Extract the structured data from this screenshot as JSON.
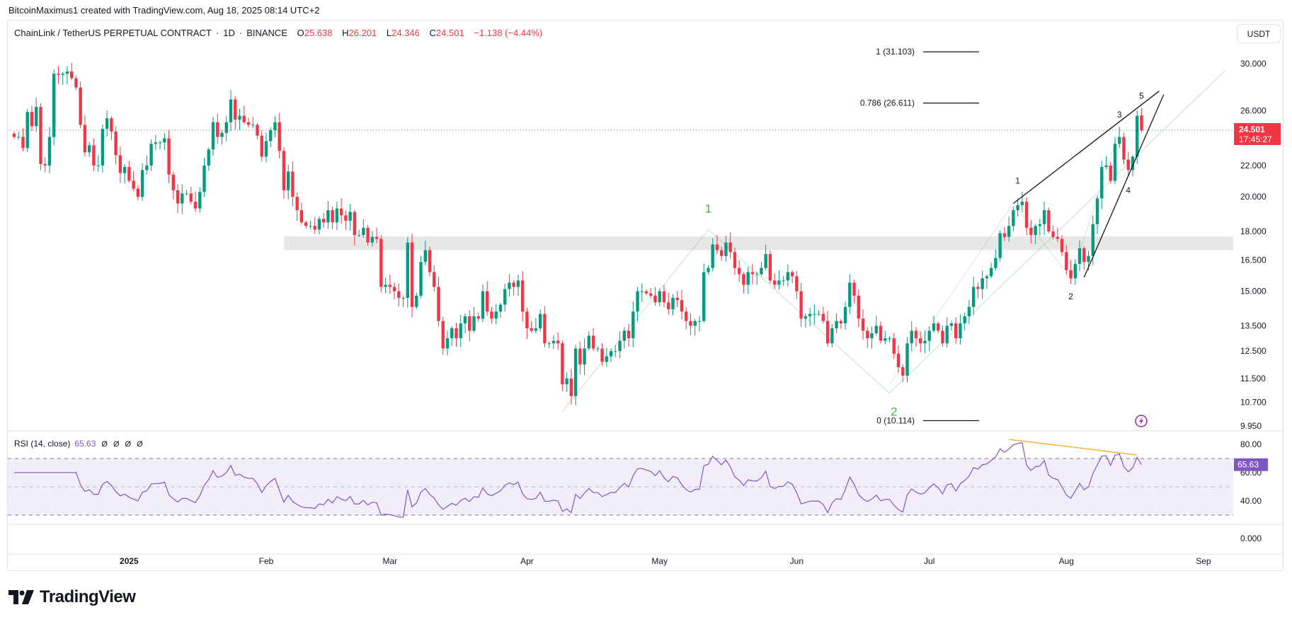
{
  "attribution": "BitcoinMaximus1 created with TradingView.com, Aug 18, 2025 08:14 UTC+2",
  "legend": {
    "symbol": "ChainLink / TetherUS PERPETUAL CONTRACT",
    "interval": "1D",
    "exchange": "BINANCE",
    "separator": "·",
    "o_label": "O",
    "open": "25.638",
    "h_label": "H",
    "high": "26.201",
    "l_label": "L",
    "low": "24.346",
    "c_label": "C",
    "close": "24.501",
    "change": "−1.138 (−4.44%)"
  },
  "currency_button": "USDT",
  "last_price": {
    "value": "24.501",
    "countdown": "17:45:27"
  },
  "rsi": {
    "title": "RSI (14, close)",
    "value": "65.63",
    "na": [
      "Ø",
      "Ø",
      "Ø",
      "Ø"
    ]
  },
  "logo": "TradingView",
  "colors": {
    "up": "#089981",
    "down": "#f23645",
    "rsi_line": "#7e57c2",
    "rsi_band": "#7e57c2",
    "divergence": "#f5a623",
    "elliott": "#4caf50",
    "zone": "#e3e3e3",
    "wedge": "#131722",
    "alert": "#9c27b0"
  },
  "chart_data": [
    {
      "type": "candlestick",
      "scale": "log",
      "start_date": "2024-12-06",
      "interval": "1D",
      "closes": [
        24.0,
        24.0,
        23.2,
        25.9,
        24.8,
        26.3,
        22.1,
        22.0,
        24.0,
        29.1,
        29.0,
        29.1,
        29.3,
        28.7,
        27.9,
        24.9,
        22.9,
        23.4,
        22.0,
        22.0,
        24.6,
        25.4,
        24.4,
        22.7,
        21.5,
        21.9,
        21.0,
        20.5,
        20.0,
        21.7,
        22.0,
        23.5,
        23.6,
        23.6,
        23.9,
        21.4,
        20.4,
        19.6,
        20.2,
        20.2,
        19.7,
        19.3,
        20.3,
        22.0,
        23.1,
        25.1,
        24.0,
        24.3,
        25.1,
        26.9,
        25.3,
        25.6,
        25.1,
        24.9,
        24.9,
        24.1,
        22.6,
        23.7,
        24.5,
        25.1,
        23.0,
        20.4,
        21.6,
        20.0,
        19.2,
        18.5,
        18.3,
        18.3,
        18.1,
        18.7,
        18.5,
        19.2,
        18.5,
        19.3,
        18.9,
        18.6,
        19.1,
        17.8,
        17.8,
        18.2,
        17.4,
        17.7,
        17.6,
        15.2,
        15.3,
        15.2,
        15.0,
        14.7,
        14.7,
        17.4,
        14.3,
        14.8,
        16.4,
        17.0,
        15.9,
        15.2,
        13.7,
        12.6,
        13.0,
        13.4,
        13.0,
        13.6,
        13.9,
        13.3,
        13.9,
        13.8,
        15.0,
        14.1,
        13.8,
        14.1,
        14.4,
        15.1,
        15.4,
        15.2,
        15.5,
        14.1,
        13.4,
        13.3,
        13.4,
        14.0,
        12.8,
        12.8,
        12.9,
        12.8,
        11.3,
        11.5,
        10.9,
        12.6,
        12.0,
        12.6,
        13.1,
        12.6,
        12.6,
        12.1,
        12.3,
        12.5,
        12.5,
        12.9,
        13.3,
        13.0,
        14.1,
        15.0,
        15.0,
        14.9,
        14.8,
        14.5,
        15.0,
        14.5,
        14.2,
        14.7,
        14.6,
        14.1,
        13.7,
        13.5,
        13.7,
        13.7,
        15.9,
        16.1,
        17.3,
        17.0,
        16.7,
        17.4,
        16.9,
        16.1,
        15.8,
        15.3,
        15.9,
        15.8,
        15.8,
        16.1,
        16.8,
        15.5,
        15.3,
        15.5,
        15.5,
        15.9,
        15.7,
        15.0,
        13.8,
        13.9,
        14.0,
        14.0,
        14.0,
        13.7,
        12.8,
        13.4,
        13.7,
        13.6,
        14.3,
        15.4,
        14.8,
        13.8,
        13.3,
        13.0,
        13.2,
        13.5,
        12.9,
        13.0,
        13.0,
        12.4,
        11.9,
        11.6,
        12.8,
        13.3,
        13.0,
        12.8,
        12.9,
        13.3,
        13.6,
        13.3,
        12.8,
        13.5,
        13.6,
        13.0,
        13.6,
        13.9,
        14.3,
        15.2,
        15.1,
        15.6,
        15.7,
        16.1,
        16.6,
        17.9,
        17.7,
        18.3,
        19.2,
        19.5,
        19.7,
        18.2,
        17.8,
        18.3,
        18.4,
        19.2,
        18.0,
        17.7,
        17.6,
        16.9,
        16.0,
        15.6,
        16.3,
        17.1,
        16.4,
        16.7,
        18.4,
        19.9,
        21.9,
        22.0,
        21.0,
        23.5,
        24.0,
        22.4,
        21.7,
        22.6,
        25.6,
        24.501
      ],
      "last_candle": {
        "open": 25.638,
        "high": 26.201,
        "low": 24.346,
        "close": 24.501
      },
      "price_ticks": [
        "30.000",
        "26.000",
        "22.000",
        "20.000",
        "18.000",
        "16.500",
        "15.000",
        "13.500",
        "12.500",
        "11.500",
        "10.700",
        "9.950"
      ],
      "time_ticks": [
        {
          "label": "2025",
          "date": "2025-01-01"
        },
        {
          "label": "Feb",
          "date": "2025-02-01"
        },
        {
          "label": "Mar",
          "date": "2025-03-01"
        },
        {
          "label": "Apr",
          "date": "2025-04-01"
        },
        {
          "label": "May",
          "date": "2025-05-01"
        },
        {
          "label": "Jun",
          "date": "2025-06-01"
        },
        {
          "label": "Jul",
          "date": "2025-07-01"
        },
        {
          "label": "Aug",
          "date": "2025-08-01"
        },
        {
          "label": "Sep",
          "date": "2025-09-01"
        }
      ],
      "fib_levels": [
        {
          "label": "1 (31.103)",
          "price": 31.103
        },
        {
          "label": "0.786 (26.611)",
          "price": 26.611
        },
        {
          "label": "0 (10.114)",
          "price": 10.114
        }
      ],
      "zone": {
        "from_date": "2025-02-05",
        "low": 17.0,
        "high": 17.73
      },
      "elliott_major": {
        "path": [
          [
            "2025-04-09",
            10.4
          ],
          [
            "2025-05-12",
            18.1
          ],
          [
            "2025-06-22",
            11.0
          ],
          [
            "2025-09-06",
            29.4
          ]
        ],
        "labels": [
          {
            "label": "1",
            "date": "2025-05-12",
            "price": 19.3
          },
          {
            "label": "2",
            "date": "2025-06-23",
            "price": 10.4
          }
        ]
      },
      "elliott_minor_path": [
        [
          "2025-06-22",
          11.3
        ],
        [
          "2025-07-20",
          19.6
        ],
        [
          "2025-08-02",
          15.6
        ],
        [
          "2025-08-13",
          24.5
        ]
      ],
      "wedge": {
        "upper": [
          [
            "2025-07-20",
            19.6
          ],
          [
            "2025-08-22",
            27.6
          ]
        ],
        "lower": [
          [
            "2025-08-05",
            15.65
          ],
          [
            "2025-08-23",
            27.3
          ]
        ]
      },
      "wave_labels": [
        {
          "label": "1",
          "date": "2025-07-21",
          "price": 21.0
        },
        {
          "label": "2",
          "date": "2025-08-02",
          "price": 14.76
        },
        {
          "label": "3",
          "date": "2025-08-13",
          "price": 25.7
        },
        {
          "label": "4",
          "date": "2025-08-15",
          "price": 20.4
        },
        {
          "label": "5",
          "date": "2025-08-18",
          "price": 27.2
        }
      ]
    },
    {
      "type": "line",
      "indicator": "RSI",
      "period": 14,
      "source": "close",
      "ylim": [
        0,
        100
      ],
      "levels": [
        70,
        50,
        30
      ],
      "ticks": [
        "80.00",
        "60.00",
        "40.00"
      ],
      "divergence_line": [
        [
          "2025-07-19",
          83.5
        ],
        [
          "2025-08-17",
          72.5
        ]
      ]
    },
    {
      "type": "empty-pane",
      "ticks": [
        "0.000"
      ]
    }
  ]
}
